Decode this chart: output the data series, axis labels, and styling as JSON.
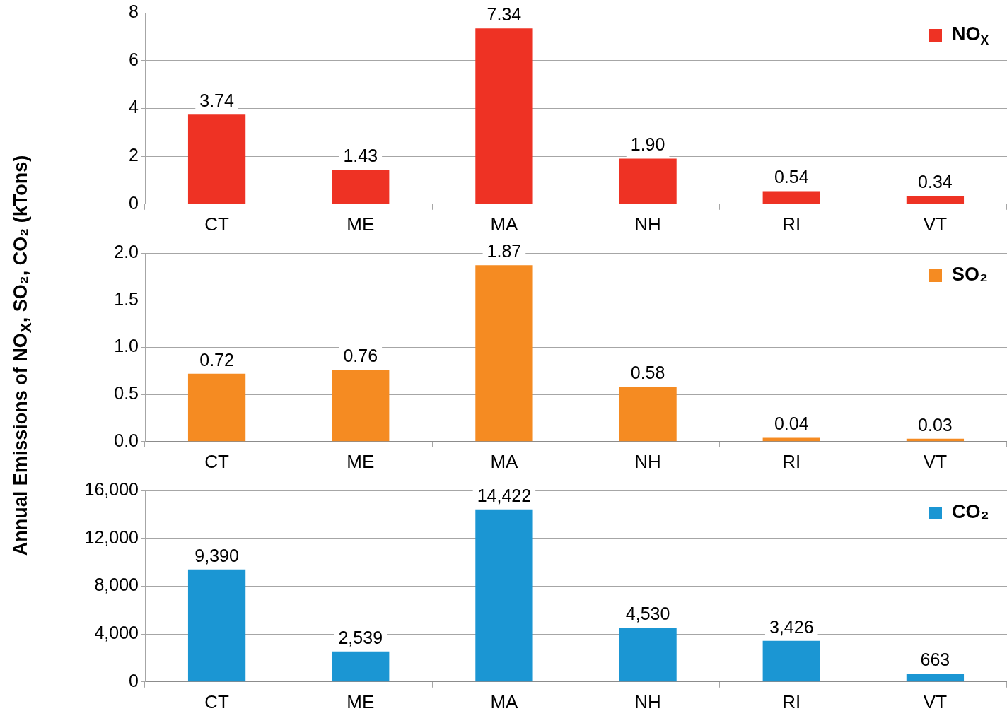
{
  "chart_data": [
    {
      "type": "bar",
      "categories": [
        "CT",
        "ME",
        "MA",
        "NH",
        "RI",
        "VT"
      ],
      "series": [
        {
          "name": "NO$_{X}$",
          "color": "#ee3224",
          "values": [
            3.74,
            1.43,
            7.34,
            1.9,
            0.54,
            0.34
          ],
          "value_labels": [
            "3.74",
            "1.43",
            "7.34",
            "1.90",
            "0.54",
            "0.34"
          ]
        }
      ],
      "ylim": [
        0,
        8
      ],
      "yticks": [
        0,
        2,
        4,
        6,
        8
      ],
      "grid": "y",
      "legend": "top right"
    },
    {
      "type": "bar",
      "categories": [
        "CT",
        "ME",
        "MA",
        "NH",
        "RI",
        "VT"
      ],
      "series": [
        {
          "name": "SO₂",
          "color": "#f58b22",
          "values": [
            0.72,
            0.76,
            1.87,
            0.58,
            0.04,
            0.03
          ],
          "value_labels": [
            "0.72",
            "0.76",
            "1.87",
            "0.58",
            "0.04",
            "0.03"
          ]
        }
      ],
      "ylim": [
        0,
        2
      ],
      "yticks": [
        {
          "value": 0,
          "label": "0.0"
        },
        {
          "value": 0.5,
          "label": "0.5"
        },
        {
          "value": 1,
          "label": "1.0"
        },
        {
          "value": 1.5,
          "label": "1.5"
        },
        {
          "value": 2,
          "label": "2.0"
        }
      ],
      "grid": "y",
      "legend": "top right",
      "ylabel": "Annual Emissions of NO$_{X}$, SO₂, CO₂ (kTons)"
    },
    {
      "type": "bar",
      "categories": [
        "CT",
        "ME",
        "MA",
        "NH",
        "RI",
        "VT"
      ],
      "series": [
        {
          "name": "CO₂",
          "color": "#1b96d3",
          "values": [
            9390,
            2539,
            14422,
            4530,
            3426,
            663
          ],
          "value_labels": [
            "9,390",
            "2,539",
            "14,422",
            "4,530",
            "3,426",
            "663"
          ]
        }
      ],
      "ylim": [
        0,
        16000
      ],
      "yticks": [
        {
          "value": 0,
          "label": "0"
        },
        {
          "value": 4000,
          "label": "4,000"
        },
        {
          "value": 8000,
          "label": "8,000"
        },
        {
          "value": 12000,
          "label": "12,000"
        },
        {
          "value": 16000,
          "label": "16,000"
        }
      ],
      "grid": "y",
      "legend": "top right"
    }
  ]
}
